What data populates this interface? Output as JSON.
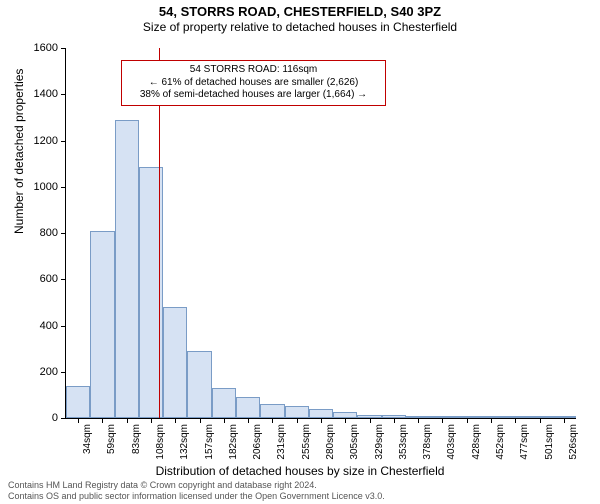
{
  "title": "54, STORRS ROAD, CHESTERFIELD, S40 3PZ",
  "subtitle": "Size of property relative to detached houses in Chesterfield",
  "chart": {
    "type": "histogram",
    "yaxis_label": "Number of detached properties",
    "xaxis_label": "Distribution of detached houses by size in Chesterfield",
    "ylim": [
      0,
      1600
    ],
    "ytick_step": 200,
    "yticks": [
      0,
      200,
      400,
      600,
      800,
      1000,
      1200,
      1400,
      1600
    ],
    "xtick_labels": [
      "34sqm",
      "59sqm",
      "83sqm",
      "108sqm",
      "132sqm",
      "157sqm",
      "182sqm",
      "206sqm",
      "231sqm",
      "255sqm",
      "280sqm",
      "305sqm",
      "329sqm",
      "353sqm",
      "378sqm",
      "403sqm",
      "428sqm",
      "452sqm",
      "477sqm",
      "501sqm",
      "526sqm"
    ],
    "bars": [
      140,
      810,
      1290,
      1085,
      480,
      290,
      130,
      90,
      60,
      50,
      40,
      25,
      15,
      12,
      8,
      10,
      5,
      3,
      3,
      3,
      2
    ],
    "bar_fill": "#d6e2f3",
    "bar_stroke": "#7a9cc6",
    "background": "#ffffff",
    "marker_x_value": 116,
    "marker_color": "#c00000",
    "annotation": {
      "line1": "54 STORRS ROAD: 116sqm",
      "line2": "← 61% of detached houses are smaller (2,626)",
      "line3": "38% of semi-detached houses are larger (1,664) →"
    }
  },
  "footer": {
    "line1": "Contains HM Land Registry data © Crown copyright and database right 2024.",
    "line2": "Contains OS and public sector information licensed under the Open Government Licence v3.0."
  }
}
